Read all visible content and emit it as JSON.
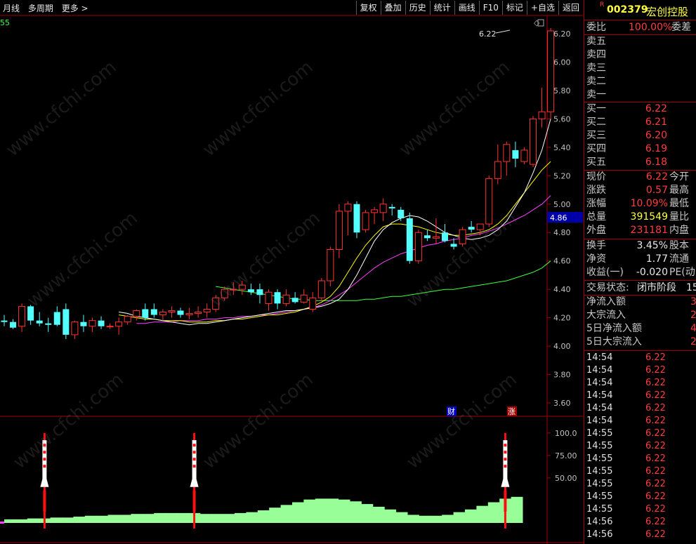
{
  "toolbar": {
    "left": [
      "月线",
      "多周期",
      "更多 >"
    ],
    "right": [
      "复权",
      "叠加",
      "历史",
      "统计",
      "画线",
      "F10",
      "标记",
      "+自选",
      "返回"
    ]
  },
  "chart": {
    "indicator_label": "55",
    "peak_label": "6.22",
    "price_axis": [
      "6.20",
      "6.00",
      "5.80",
      "5.60",
      "5.40",
      "5.20",
      "5.00",
      "4.80",
      "4.60",
      "4.40",
      "4.20",
      "4.00",
      "3.80",
      "3.60"
    ],
    "current_price_tag": "4.86",
    "marker_cai": "财",
    "marker_zhang": "涨",
    "osc_axis": [
      "100.0",
      "75.00",
      "50.00"
    ],
    "colors": {
      "up": "#ff3232",
      "down": "#54ffff",
      "ma5": "#ffffff",
      "ma10": "#ffff00",
      "ma20": "#ff40ff",
      "ma60": "#40ff40",
      "osc": "#98ff98"
    }
  },
  "chart_data": {
    "type": "candlestick",
    "ylim": [
      3.5,
      6.3
    ],
    "candles": [
      [
        4.18,
        4.22,
        4.14,
        4.17
      ],
      [
        4.17,
        4.19,
        4.12,
        4.13
      ],
      [
        4.14,
        4.3,
        4.1,
        4.28
      ],
      [
        4.28,
        4.29,
        4.15,
        4.18
      ],
      [
        4.18,
        4.24,
        4.14,
        4.16
      ],
      [
        4.16,
        4.2,
        4.1,
        4.15
      ],
      [
        4.24,
        4.28,
        4.14,
        4.15
      ],
      [
        4.26,
        4.3,
        4.05,
        4.08
      ],
      [
        4.08,
        4.18,
        4.05,
        4.17
      ],
      [
        4.17,
        4.22,
        4.1,
        4.14
      ],
      [
        4.14,
        4.2,
        4.1,
        4.18
      ],
      [
        4.18,
        4.21,
        4.12,
        4.14
      ],
      [
        4.14,
        4.16,
        4.12,
        4.14
      ],
      [
        4.14,
        4.2,
        4.08,
        4.17
      ],
      [
        4.17,
        4.22,
        4.15,
        4.21
      ],
      [
        4.21,
        4.26,
        4.18,
        4.25
      ],
      [
        4.26,
        4.3,
        4.18,
        4.2
      ],
      [
        4.26,
        4.3,
        4.2,
        4.22
      ],
      [
        4.22,
        4.26,
        4.18,
        4.24
      ],
      [
        4.24,
        4.28,
        4.2,
        4.25
      ],
      [
        4.25,
        4.27,
        4.2,
        4.22
      ],
      [
        4.22,
        4.27,
        4.19,
        4.23
      ],
      [
        4.23,
        4.28,
        4.2,
        4.24
      ],
      [
        4.24,
        4.3,
        4.2,
        4.26
      ],
      [
        4.26,
        4.36,
        4.24,
        4.34
      ],
      [
        4.34,
        4.42,
        4.32,
        4.4
      ],
      [
        4.4,
        4.45,
        4.36,
        4.4
      ],
      [
        4.4,
        4.46,
        4.36,
        4.43
      ],
      [
        4.4,
        4.44,
        4.36,
        4.38
      ],
      [
        4.4,
        4.44,
        4.3,
        4.36
      ],
      [
        4.3,
        4.4,
        4.25,
        4.38
      ],
      [
        4.38,
        4.4,
        4.26,
        4.3
      ],
      [
        4.3,
        4.4,
        4.28,
        4.36
      ],
      [
        4.34,
        4.38,
        4.3,
        4.31
      ],
      [
        4.31,
        4.4,
        4.3,
        4.36
      ],
      [
        4.26,
        4.38,
        4.24,
        4.34
      ],
      [
        4.34,
        4.48,
        4.32,
        4.46
      ],
      [
        4.46,
        4.7,
        4.42,
        4.68
      ],
      [
        4.68,
        5.0,
        4.62,
        4.95
      ],
      [
        4.95,
        5.02,
        4.78,
        5.0
      ],
      [
        5.0,
        5.02,
        4.76,
        4.8
      ],
      [
        4.82,
        4.96,
        4.8,
        4.94
      ],
      [
        4.94,
        4.98,
        4.86,
        4.96
      ],
      [
        4.94,
        5.04,
        4.88,
        5.0
      ],
      [
        4.98,
        5.0,
        4.92,
        4.97
      ],
      [
        4.96,
        4.98,
        4.88,
        4.9
      ],
      [
        4.9,
        4.94,
        4.58,
        4.6
      ],
      [
        4.6,
        4.82,
        4.58,
        4.8
      ],
      [
        4.78,
        4.82,
        4.74,
        4.76
      ],
      [
        4.76,
        4.9,
        4.72,
        4.77
      ],
      [
        4.8,
        4.86,
        4.73,
        4.74
      ],
      [
        4.72,
        4.76,
        4.68,
        4.7
      ],
      [
        4.72,
        4.84,
        4.7,
        4.82
      ],
      [
        4.84,
        4.88,
        4.8,
        4.82
      ],
      [
        4.82,
        4.86,
        4.78,
        4.86
      ],
      [
        4.86,
        5.2,
        4.84,
        5.18
      ],
      [
        5.18,
        5.42,
        5.14,
        5.3
      ],
      [
        5.3,
        5.44,
        5.2,
        5.42
      ],
      [
        5.38,
        5.44,
        5.26,
        5.32
      ],
      [
        5.3,
        5.4,
        5.28,
        5.38
      ],
      [
        5.28,
        5.62,
        5.26,
        5.6
      ],
      [
        5.6,
        5.82,
        5.54,
        5.65
      ],
      [
        5.65,
        6.24,
        5.6,
        6.22
      ]
    ],
    "ma5": [
      4.24,
      4.23,
      4.21,
      4.2,
      4.19,
      4.18,
      4.17,
      4.16,
      4.15,
      4.16,
      4.16,
      4.17,
      4.18,
      4.19,
      4.2,
      4.21,
      4.22,
      4.23,
      4.24,
      4.25,
      4.25,
      4.26,
      4.27,
      4.28,
      4.3,
      4.33,
      4.4,
      4.5,
      4.62,
      4.74,
      4.82,
      4.87,
      4.9,
      4.92,
      4.91,
      4.88,
      4.84,
      4.8,
      4.78,
      4.76,
      4.75,
      4.76,
      4.78,
      4.82,
      4.88,
      4.98,
      5.08,
      5.22,
      5.38,
      5.6
    ],
    "ma10": [
      4.22,
      4.21,
      4.2,
      4.19,
      4.19,
      4.18,
      4.18,
      4.18,
      4.17,
      4.17,
      4.17,
      4.18,
      4.18,
      4.19,
      4.19,
      4.2,
      4.21,
      4.22,
      4.22,
      4.23,
      4.24,
      4.26,
      4.28,
      4.31,
      4.35,
      4.42,
      4.52,
      4.62,
      4.71,
      4.78,
      4.84,
      4.86,
      4.86,
      4.85,
      4.84,
      4.82,
      4.8,
      4.79,
      4.78,
      4.78,
      4.79,
      4.8,
      4.82,
      4.86,
      4.92,
      5.0,
      5.08,
      5.16,
      5.24,
      5.3
    ],
    "ma20": [
      4.16,
      4.16,
      4.17,
      4.17,
      4.17,
      4.18,
      4.18,
      4.18,
      4.19,
      4.19,
      4.2,
      4.2,
      4.21,
      4.21,
      4.22,
      4.22,
      4.23,
      4.24,
      4.25,
      4.26,
      4.27,
      4.29,
      4.32,
      4.36,
      4.4,
      4.45,
      4.5,
      4.55,
      4.59,
      4.62,
      4.65,
      4.67,
      4.69,
      4.71,
      4.72,
      4.74,
      4.75,
      4.76,
      4.78,
      4.79,
      4.81,
      4.83,
      4.86,
      4.89,
      4.92,
      4.96,
      5.0,
      5.06
    ],
    "ma60": [
      4.42,
      4.41,
      4.4,
      4.39,
      4.38,
      4.37,
      4.36,
      4.35,
      4.34,
      4.33,
      4.33,
      4.32,
      4.32,
      4.32,
      4.32,
      4.32,
      4.32,
      4.33,
      4.33,
      4.34,
      4.35,
      4.35,
      4.36,
      4.37,
      4.38,
      4.39,
      4.4,
      4.4,
      4.41,
      4.42,
      4.43,
      4.44,
      4.45,
      4.46,
      4.48,
      4.5,
      4.52,
      4.55,
      4.6
    ],
    "osc_ylim": [
      0,
      110
    ],
    "osc": [
      4,
      4,
      5,
      5,
      6,
      6,
      7,
      8,
      8,
      9,
      9,
      10,
      10,
      11,
      11,
      11,
      11,
      10,
      10,
      10,
      11,
      12,
      14,
      17,
      20,
      23,
      26,
      27,
      27,
      26,
      24,
      21,
      18,
      15,
      12,
      9,
      8,
      8,
      9,
      12,
      15,
      19,
      23,
      27,
      29
    ],
    "signals": [
      3,
      16,
      43
    ]
  },
  "quote": {
    "code": "002379",
    "name": "宏创控股",
    "r_badge": "R",
    "weibi_label": "委比",
    "weibi_value": "100.00%",
    "weicha_label": "委差",
    "sell": [
      "卖五",
      "卖四",
      "卖三",
      "卖二",
      "卖一"
    ],
    "buy": [
      {
        "label": "买一",
        "price": "6.22"
      },
      {
        "label": "买二",
        "price": "6.21"
      },
      {
        "label": "买三",
        "price": "6.20"
      },
      {
        "label": "买四",
        "price": "6.19"
      },
      {
        "label": "买五",
        "price": "6.18"
      }
    ],
    "stats": [
      {
        "label": "现价",
        "value": "6.22",
        "right": "今开",
        "cls": "red"
      },
      {
        "label": "涨跌",
        "value": "0.57",
        "right": "最高",
        "cls": "red"
      },
      {
        "label": "涨幅",
        "value": "10.09%",
        "right": "最低",
        "cls": "red"
      },
      {
        "label": "总量",
        "value": "391549",
        "right": "量比",
        "cls": "yel"
      },
      {
        "label": "外盘",
        "value": "231181",
        "right": "内盘",
        "cls": "red"
      }
    ],
    "fund": [
      {
        "label": "换手",
        "value": "3.45%",
        "right": "股本"
      },
      {
        "label": "净资",
        "value": "1.77",
        "right": "流通"
      },
      {
        "label": "收益(一)",
        "value": "-0.020",
        "right": "PE(动)"
      }
    ],
    "trade_state_label": "交易状态:",
    "trade_state_value": "闭市阶段",
    "trade_state_num": "15",
    "flows": [
      {
        "label": "净流入额",
        "value": "3"
      },
      {
        "label": "大宗流入",
        "value": "2"
      },
      {
        "label": "5日净流入额",
        "value": "4"
      },
      {
        "label": "5日大宗流入",
        "value": "2"
      }
    ],
    "ticks": [
      {
        "time": "14:54",
        "price": "6.22"
      },
      {
        "time": "14:54",
        "price": "6.22"
      },
      {
        "time": "14:54",
        "price": "6.22"
      },
      {
        "time": "14:54",
        "price": "6.22"
      },
      {
        "time": "14:54",
        "price": "6.22"
      },
      {
        "time": "14:54",
        "price": "6.22"
      },
      {
        "time": "14:55",
        "price": "6.22"
      },
      {
        "time": "14:55",
        "price": "6.22"
      },
      {
        "time": "14:55",
        "price": "6.22"
      },
      {
        "time": "14:55",
        "price": "6.22"
      },
      {
        "time": "14:55",
        "price": "6.22"
      },
      {
        "time": "14:55",
        "price": "6.22"
      },
      {
        "time": "14:55",
        "price": "6.22"
      },
      {
        "time": "14:56",
        "price": "6.22"
      },
      {
        "time": "14:56",
        "price": "6.22"
      }
    ]
  }
}
